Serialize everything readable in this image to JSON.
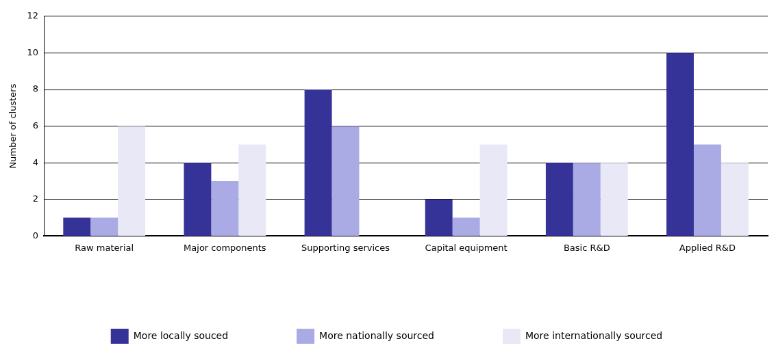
{
  "chart_data": {
    "type": "bar",
    "ylabel": "Number of clusters",
    "categories": [
      "Raw material",
      "Major components",
      "Supporting services",
      "Capital equipment",
      "Basic R&D",
      "Applied R&D"
    ],
    "series": [
      {
        "name": "More locally souced",
        "color": "#363398",
        "values": [
          1,
          4,
          8,
          2,
          4,
          10
        ]
      },
      {
        "name": "More nationally sourced",
        "color": "#aaaae4",
        "values": [
          1,
          3,
          6,
          1,
          4,
          5
        ]
      },
      {
        "name": "More internationally sourced",
        "color": "#e8e8f6",
        "values": [
          6,
          5,
          0,
          5,
          4,
          4
        ]
      }
    ],
    "ylim": [
      0,
      12
    ],
    "yticks": [
      0,
      2,
      4,
      6,
      8,
      10,
      12
    ],
    "grid": "y",
    "legend": "bottom"
  }
}
